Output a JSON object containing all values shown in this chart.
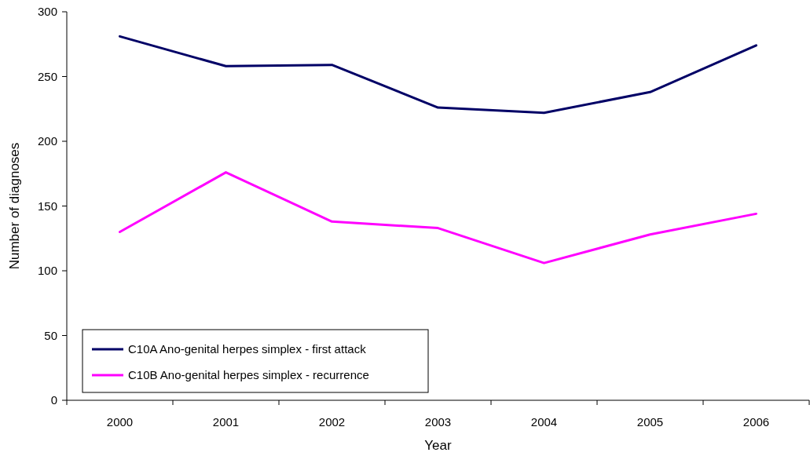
{
  "chart_data": {
    "type": "line",
    "xlabel": "Year",
    "ylabel": "Number of diagnoses",
    "categories": [
      "2000",
      "2001",
      "2002",
      "2003",
      "2004",
      "2005",
      "2006"
    ],
    "series": [
      {
        "name": "C10A Ano-genital herpes simplex - first attack",
        "color": "#000066",
        "values": [
          281,
          258,
          259,
          226,
          222,
          238,
          274
        ]
      },
      {
        "name": "C10B Ano-genital herpes simplex - recurrence",
        "color": "#ff00ff",
        "values": [
          130,
          176,
          138,
          133,
          106,
          128,
          144
        ]
      }
    ],
    "ylim": [
      0,
      300
    ],
    "yticks": [
      0,
      50,
      100,
      150,
      200,
      250,
      300
    ],
    "grid": false,
    "legend": "bottom left",
    "marker": "none",
    "line_style": "solid"
  }
}
